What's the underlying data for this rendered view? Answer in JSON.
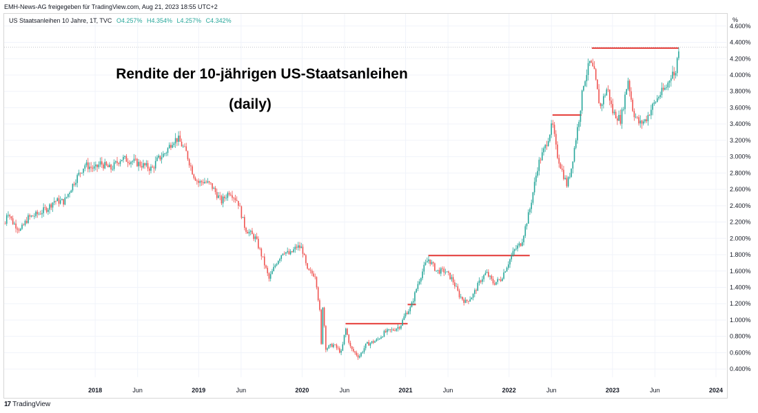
{
  "header": {
    "attribution": "EMH-News-AG freigegeben für TradingView.com, Aug 21, 2023 18:55 UTC+2"
  },
  "legend": {
    "symbol": "US Staatsanleihen 10 Jahre, 1T, TVC",
    "open": "O4.257%",
    "high": "H4.354%",
    "low": "L4.257%",
    "close": "C4.342%"
  },
  "axis": {
    "unit_label": "%"
  },
  "footer": {
    "logo_mark": "17",
    "brand": "TradingView"
  },
  "colors": {
    "up": "#26a69a",
    "down": "#ef5350",
    "resistance": "#e53935",
    "grid": "#f0f3fa"
  },
  "chart_data": {
    "type": "candlestick",
    "title": [
      "Rendite der 10-jährigen US-Staatsanleihen",
      "(daily)"
    ],
    "y_unit": "%",
    "ylim": [
      0.3,
      4.75
    ],
    "y_ticks": [
      0.4,
      0.6,
      0.8,
      1.0,
      1.2,
      1.4,
      1.6,
      1.8,
      2.0,
      2.2,
      2.4,
      2.6,
      2.8,
      3.0,
      3.2,
      3.4,
      3.6,
      3.8,
      4.0,
      4.2,
      4.4,
      4.6
    ],
    "y_tick_labels": [
      "0.400%",
      "0.600%",
      "0.800%",
      "1.000%",
      "1.200%",
      "1.400%",
      "1.600%",
      "1.800%",
      "2.000%",
      "2.200%",
      "2.400%",
      "2.600%",
      "2.800%",
      "3.000%",
      "3.200%",
      "3.400%",
      "3.600%",
      "3.800%",
      "4.000%",
      "4.200%",
      "4.400%",
      "4.600%"
    ],
    "xlim": [
      2017.12,
      2024.1
    ],
    "x_ticks": [
      {
        "t": 2018.0,
        "label": "2018",
        "year": true
      },
      {
        "t": 2018.41,
        "label": "Jun",
        "year": false
      },
      {
        "t": 2019.0,
        "label": "2019",
        "year": true
      },
      {
        "t": 2019.41,
        "label": "Jun",
        "year": false
      },
      {
        "t": 2020.0,
        "label": "2020",
        "year": true
      },
      {
        "t": 2020.41,
        "label": "Jun",
        "year": false
      },
      {
        "t": 2021.0,
        "label": "2021",
        "year": true
      },
      {
        "t": 2021.41,
        "label": "Jun",
        "year": false
      },
      {
        "t": 2022.0,
        "label": "2022",
        "year": true
      },
      {
        "t": 2022.41,
        "label": "Jun",
        "year": false
      },
      {
        "t": 2023.0,
        "label": "2023",
        "year": true
      },
      {
        "t": 2023.41,
        "label": "Jun",
        "year": false
      },
      {
        "t": 2024.0,
        "label": "2024",
        "year": true
      }
    ],
    "last_value": 4.342,
    "path_anchors": [
      [
        2017.13,
        2.18
      ],
      [
        2017.15,
        2.35
      ],
      [
        2017.2,
        2.2
      ],
      [
        2017.28,
        2.1
      ],
      [
        2017.35,
        2.25
      ],
      [
        2017.45,
        2.3
      ],
      [
        2017.55,
        2.38
      ],
      [
        2017.6,
        2.46
      ],
      [
        2017.7,
        2.45
      ],
      [
        2017.8,
        2.7
      ],
      [
        2017.9,
        2.9
      ],
      [
        2018.0,
        2.85
      ],
      [
        2018.05,
        2.92
      ],
      [
        2018.15,
        2.85
      ],
      [
        2018.25,
        2.98
      ],
      [
        2018.35,
        2.95
      ],
      [
        2018.45,
        2.9
      ],
      [
        2018.55,
        2.85
      ],
      [
        2018.6,
        2.96
      ],
      [
        2018.68,
        3.05
      ],
      [
        2018.75,
        3.2
      ],
      [
        2018.8,
        3.22
      ],
      [
        2018.88,
        3.05
      ],
      [
        2018.95,
        2.78
      ],
      [
        2019.0,
        2.68
      ],
      [
        2019.05,
        2.7
      ],
      [
        2019.12,
        2.65
      ],
      [
        2019.22,
        2.45
      ],
      [
        2019.3,
        2.58
      ],
      [
        2019.38,
        2.45
      ],
      [
        2019.45,
        2.12
      ],
      [
        2019.55,
        2.0
      ],
      [
        2019.62,
        1.75
      ],
      [
        2019.68,
        1.5
      ],
      [
        2019.75,
        1.7
      ],
      [
        2019.82,
        1.85
      ],
      [
        2019.88,
        1.8
      ],
      [
        2019.95,
        1.9
      ],
      [
        2020.0,
        1.88
      ],
      [
        2020.05,
        1.6
      ],
      [
        2020.13,
        1.55
      ],
      [
        2020.17,
        1.1
      ],
      [
        2020.19,
        0.55
      ],
      [
        2020.2,
        1.2
      ],
      [
        2020.23,
        0.65
      ],
      [
        2020.3,
        0.7
      ],
      [
        2020.38,
        0.6
      ],
      [
        2020.42,
        0.9
      ],
      [
        2020.47,
        0.65
      ],
      [
        2020.55,
        0.55
      ],
      [
        2020.62,
        0.7
      ],
      [
        2020.72,
        0.75
      ],
      [
        2020.8,
        0.85
      ],
      [
        2020.88,
        0.88
      ],
      [
        2020.95,
        0.93
      ],
      [
        2021.0,
        1.08
      ],
      [
        2021.05,
        1.15
      ],
      [
        2021.12,
        1.45
      ],
      [
        2021.18,
        1.65
      ],
      [
        2021.22,
        1.75
      ],
      [
        2021.3,
        1.6
      ],
      [
        2021.38,
        1.6
      ],
      [
        2021.45,
        1.5
      ],
      [
        2021.52,
        1.3
      ],
      [
        2021.58,
        1.22
      ],
      [
        2021.65,
        1.3
      ],
      [
        2021.72,
        1.48
      ],
      [
        2021.78,
        1.58
      ],
      [
        2021.85,
        1.45
      ],
      [
        2021.92,
        1.5
      ],
      [
        2022.0,
        1.72
      ],
      [
        2022.05,
        1.85
      ],
      [
        2022.12,
        1.95
      ],
      [
        2022.2,
        2.35
      ],
      [
        2022.28,
        2.9
      ],
      [
        2022.35,
        3.12
      ],
      [
        2022.42,
        3.4
      ],
      [
        2022.46,
        3.05
      ],
      [
        2022.52,
        2.8
      ],
      [
        2022.56,
        2.65
      ],
      [
        2022.6,
        2.85
      ],
      [
        2022.68,
        3.5
      ],
      [
        2022.72,
        3.9
      ],
      [
        2022.78,
        4.15
      ],
      [
        2022.82,
        4.05
      ],
      [
        2022.88,
        3.6
      ],
      [
        2022.95,
        3.85
      ],
      [
        2023.0,
        3.55
      ],
      [
        2023.08,
        3.45
      ],
      [
        2023.15,
        3.95
      ],
      [
        2023.2,
        3.55
      ],
      [
        2023.26,
        3.4
      ],
      [
        2023.32,
        3.45
      ],
      [
        2023.38,
        3.6
      ],
      [
        2023.45,
        3.75
      ],
      [
        2023.52,
        3.85
      ],
      [
        2023.58,
        4.05
      ],
      [
        2023.6,
        3.95
      ],
      [
        2023.64,
        4.34
      ]
    ],
    "resistance_lines": [
      {
        "x_start": 2020.42,
        "x_end": 2021.02,
        "y": 0.955
      },
      {
        "x_start": 2021.02,
        "x_end": 2021.1,
        "y": 1.19
      },
      {
        "x_start": 2021.22,
        "x_end": 2022.2,
        "y": 1.79
      },
      {
        "x_start": 2022.42,
        "x_end": 2022.7,
        "y": 3.51
      },
      {
        "x_start": 2022.8,
        "x_end": 2023.64,
        "y": 4.33
      }
    ]
  }
}
